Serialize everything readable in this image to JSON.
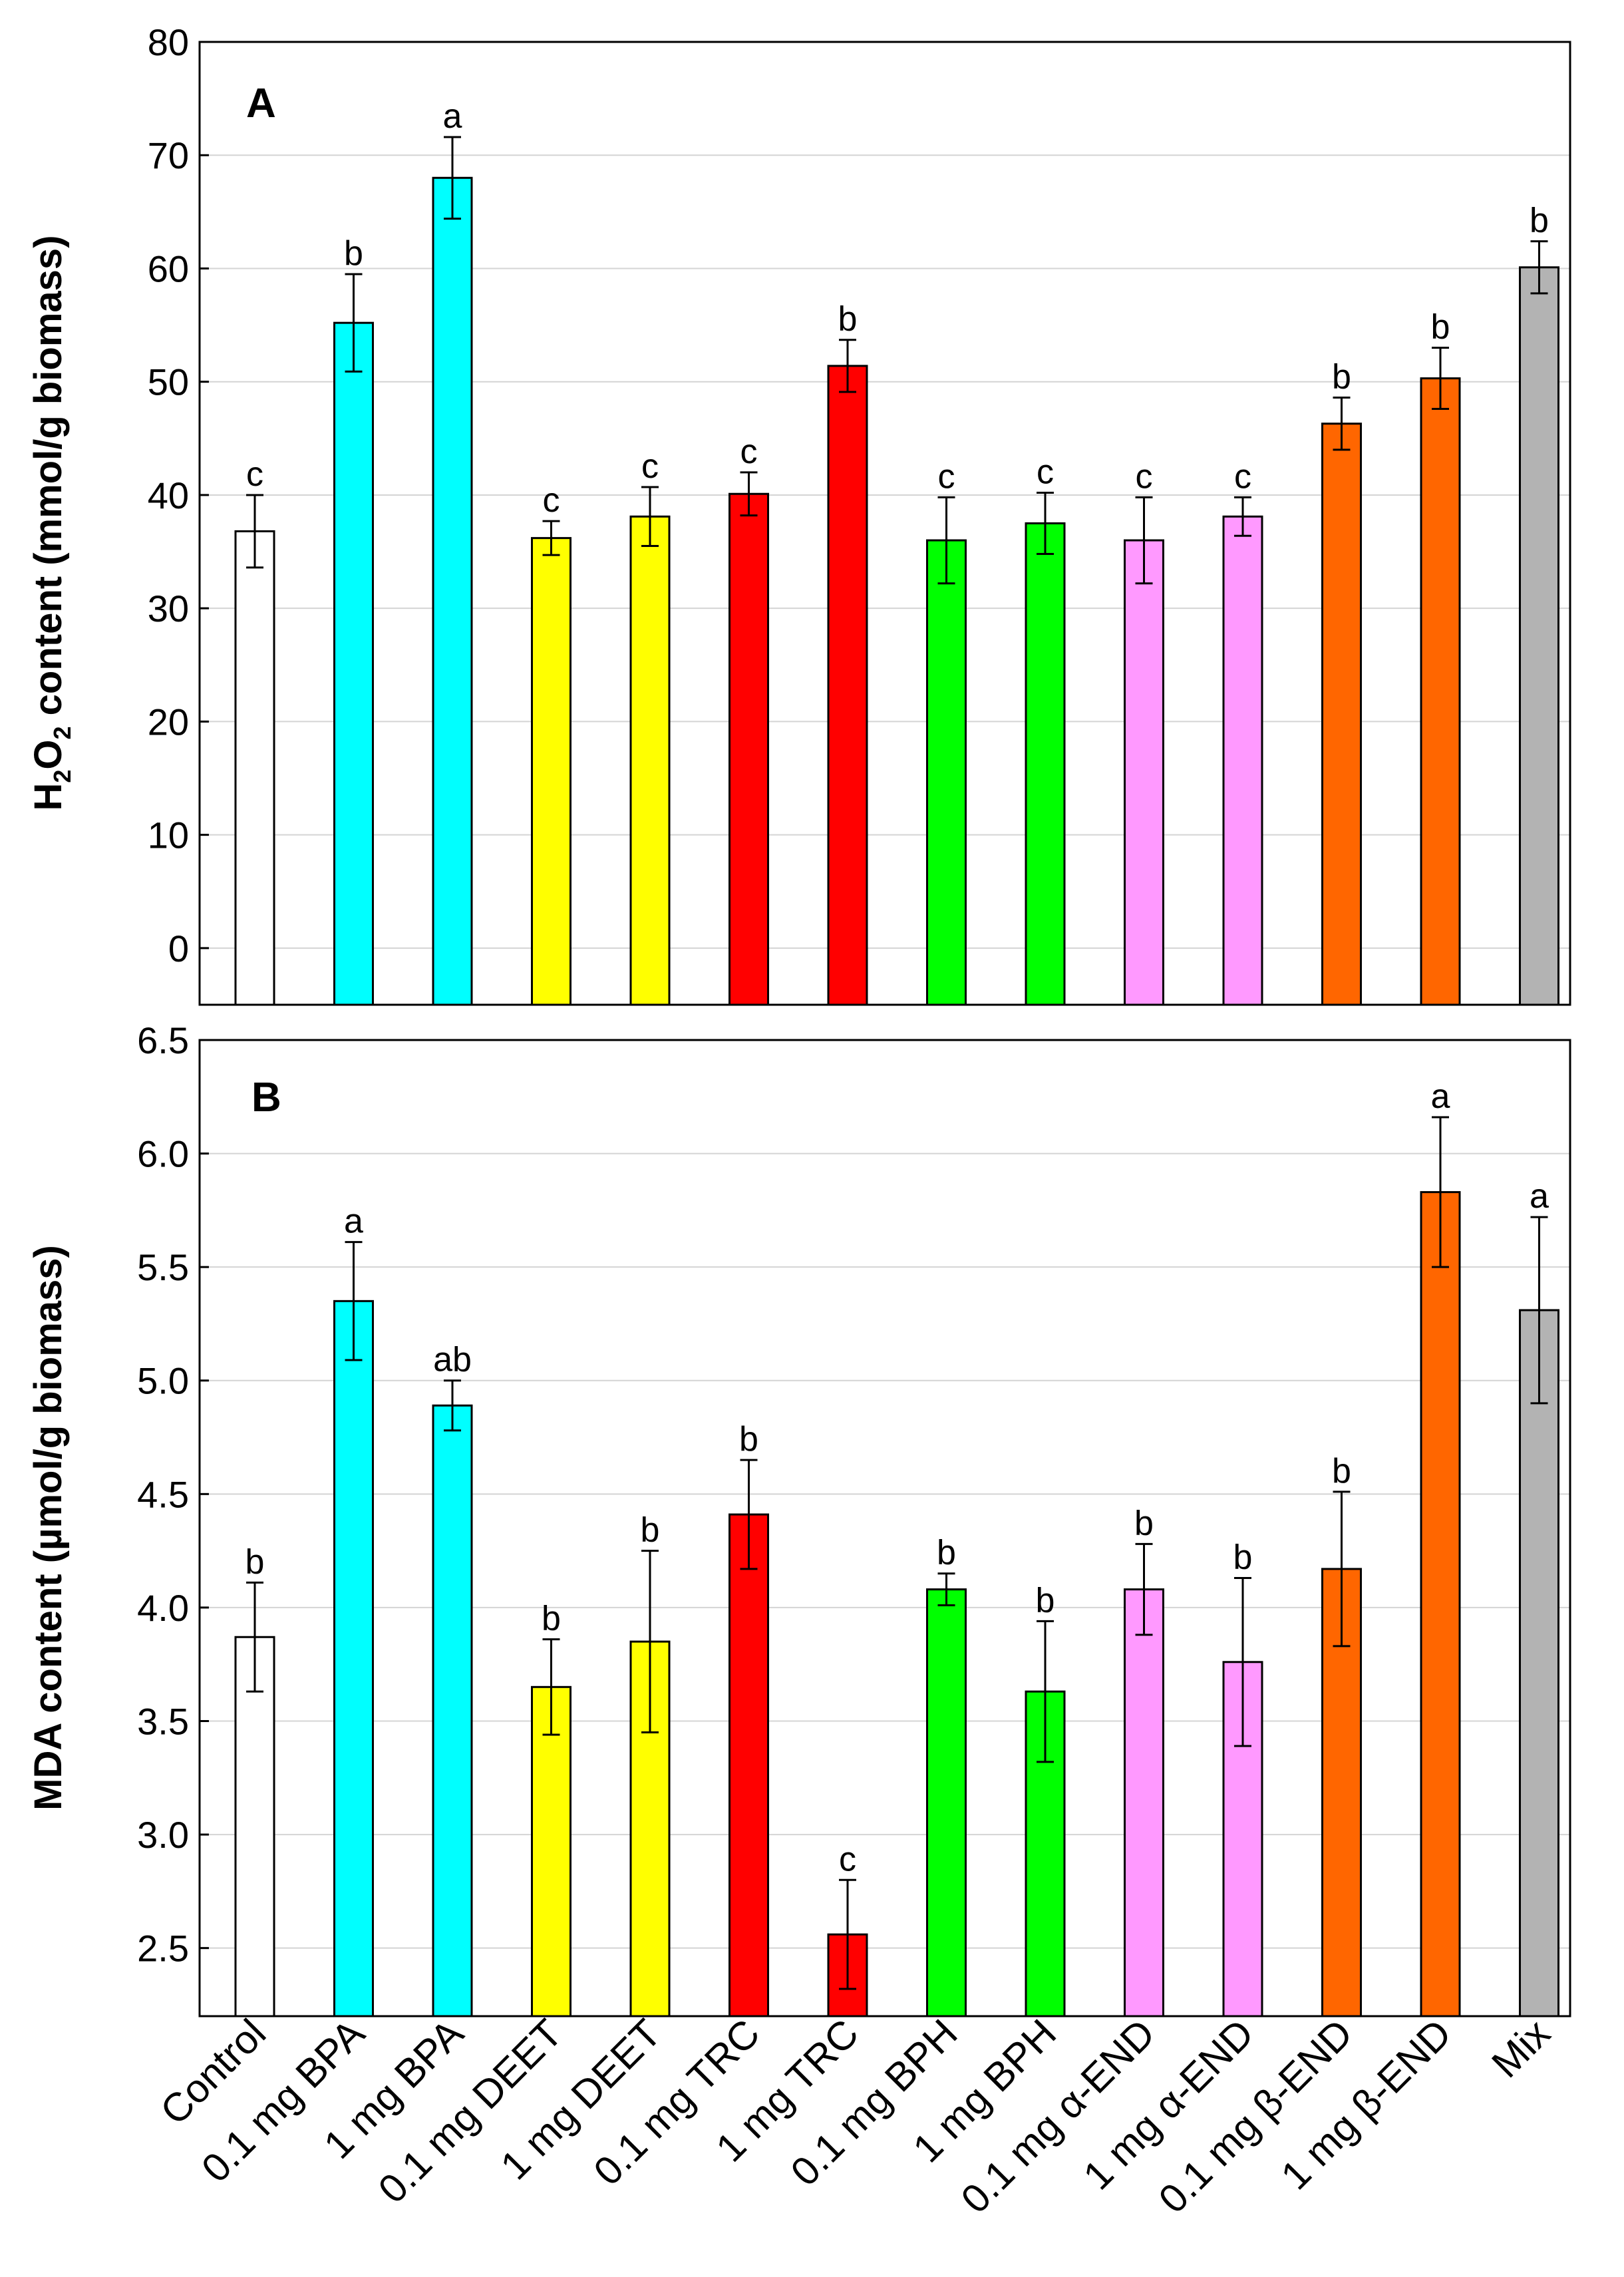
{
  "colors": {
    "control": "#ffffff",
    "bpa": "#00ffff",
    "deet": "#ffff00",
    "trc": "#ff0000",
    "bph": "#00ff00",
    "a_end": "#ff99ff",
    "b_end": "#ff6600",
    "mix": "#b3b3b3"
  },
  "chart_data": [
    {
      "type": "bar",
      "panel": "A",
      "ylabel_parts": [
        "H",
        "2",
        "O",
        "2",
        " content (mmol/g biomass)"
      ],
      "ylim": [
        -5,
        80
      ],
      "yticks": [
        0,
        10,
        20,
        30,
        40,
        50,
        60,
        70,
        80
      ],
      "grid": true,
      "categories": [
        "Control",
        "0.1 mg BPA",
        "1 mg BPA",
        "0.1 mg DEET",
        "1 mg DEET",
        "0.1 mg TRC",
        "1 mg TRC",
        "0.1 mg BPH",
        "1 mg BPH",
        "0.1 mg α-END",
        "1 mg α-END",
        "0.1 mg β-END",
        "1 mg β-END",
        "Mix"
      ],
      "color_keys": [
        "control",
        "bpa",
        "bpa",
        "deet",
        "deet",
        "trc",
        "trc",
        "bph",
        "bph",
        "a_end",
        "a_end",
        "b_end",
        "b_end",
        "mix"
      ],
      "values": [
        36.8,
        55.2,
        68.0,
        36.2,
        38.1,
        40.1,
        51.4,
        36.0,
        37.5,
        36.0,
        38.1,
        46.3,
        50.3,
        60.1
      ],
      "errors": [
        3.2,
        4.3,
        3.6,
        1.5,
        2.6,
        1.9,
        2.3,
        3.8,
        2.7,
        3.8,
        1.7,
        2.3,
        2.7,
        2.3
      ],
      "significance": [
        "c",
        "b",
        "a",
        "c",
        "c",
        "c",
        "b",
        "c",
        "c",
        "c",
        "c",
        "b",
        "b",
        "b"
      ]
    },
    {
      "type": "bar",
      "panel": "B",
      "ylabel_parts": [
        "MDA content (µmol/g biomass)"
      ],
      "ylim": [
        2.2,
        6.5
      ],
      "yticks": [
        2.5,
        3.0,
        3.5,
        4.0,
        4.5,
        5.0,
        5.5,
        6.0,
        6.5
      ],
      "ytick_labels": [
        "2.5",
        "3.0",
        "3.5",
        "4.0",
        "4.5",
        "5.0",
        "5.5",
        "6.0",
        "6.5"
      ],
      "grid": true,
      "categories": [
        "Control",
        "0.1 mg BPA",
        "1 mg BPA",
        "0.1 mg DEET",
        "1 mg DEET",
        "0.1 mg TRC",
        "1 mg TRC",
        "0.1 mg BPH",
        "1 mg BPH",
        "0.1 mg α-END",
        "1 mg α-END",
        "0.1 mg β-END",
        "1 mg β-END",
        "Mix"
      ],
      "color_keys": [
        "control",
        "bpa",
        "bpa",
        "deet",
        "deet",
        "trc",
        "trc",
        "bph",
        "bph",
        "a_end",
        "a_end",
        "b_end",
        "b_end",
        "mix"
      ],
      "values": [
        3.87,
        5.35,
        4.89,
        3.65,
        3.85,
        4.41,
        2.56,
        4.08,
        3.63,
        4.08,
        3.76,
        4.17,
        5.83,
        5.31
      ],
      "errors": [
        0.24,
        0.26,
        0.11,
        0.21,
        0.4,
        0.24,
        0.24,
        0.07,
        0.31,
        0.2,
        0.37,
        0.34,
        0.33,
        0.41
      ],
      "significance": [
        "b",
        "a",
        "ab",
        "b",
        "b",
        "b",
        "c",
        "b",
        "b",
        "b",
        "b",
        "b",
        "a",
        "a"
      ]
    }
  ]
}
